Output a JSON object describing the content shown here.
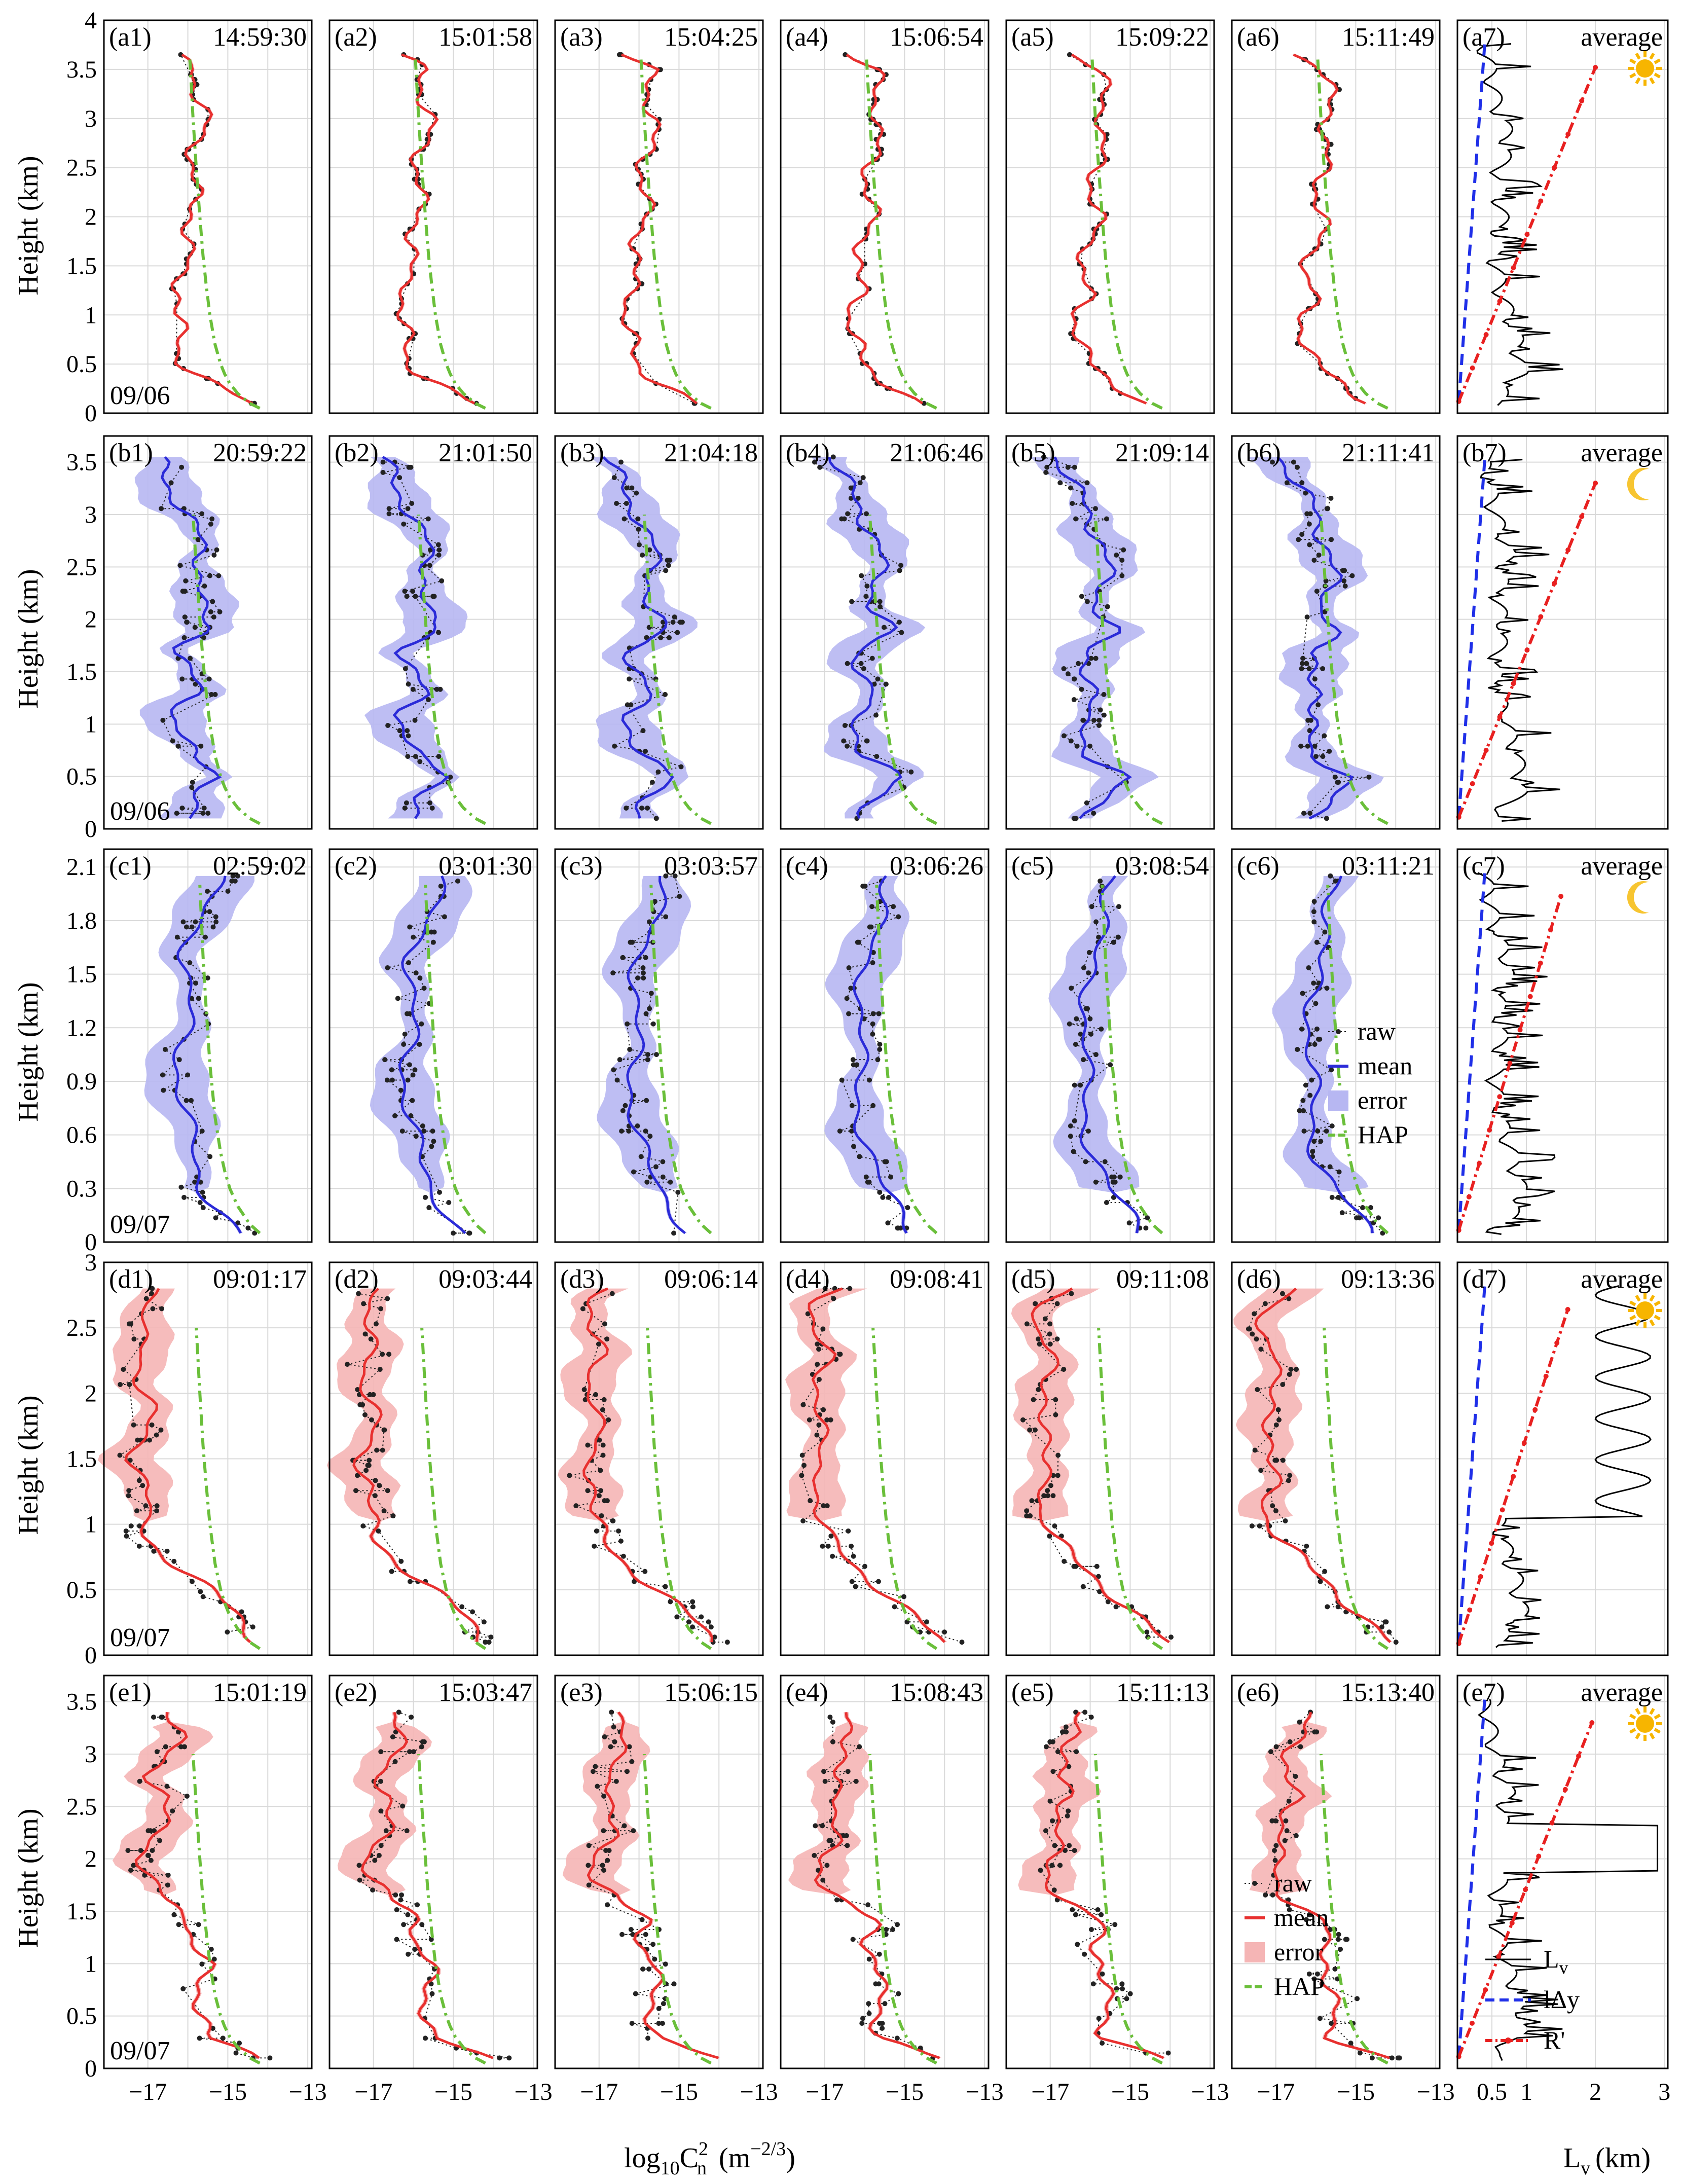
{
  "figure": {
    "y_axis_title": "Height (km)",
    "x_axis_title_profiles": "log₁₀Cₙ² (m⁻²ᐟ³)",
    "x_axis_title_profiles_parts": {
      "base": "log",
      "sub1": "10",
      "c": "C",
      "sub2": "n",
      "sup": "2",
      "unit": "(m",
      "unit_sup": "−2/3",
      "unit_close": ")"
    },
    "x_axis_title_lv": "L",
    "x_axis_title_lv_sub": "v",
    "x_axis_title_lv_unit": "(km)",
    "x_ticks_profiles": [
      -17,
      -15,
      -13
    ],
    "x_tick_labels_profiles": [
      "−17",
      "−15",
      "−13"
    ],
    "x_ticks_lv": [
      0.5,
      1,
      2,
      3
    ],
    "x_tick_labels_lv": [
      "0.5",
      "1",
      "2",
      "3"
    ],
    "colors": {
      "day": "#e8302f",
      "day_fill": "#f5b5b5",
      "night": "#2b2bd8",
      "night_fill": "#b7b7f2",
      "hap": "#6abf3a",
      "raw": "#222222",
      "lv": "#000000",
      "ldy": "#1f2fe8",
      "rprime": "#e82020",
      "grid": "#d9d9d9",
      "sun": "#f7b500",
      "moon": "#f7c531"
    }
  },
  "rows": [
    {
      "id": "a",
      "date": "09/06",
      "period": "day",
      "icon": "sun-icon",
      "ylim": [
        0,
        4
      ],
      "yticks": [
        0,
        0.5,
        1,
        1.5,
        2,
        2.5,
        3,
        3.5,
        4
      ],
      "ytick_labels": [
        "0",
        "0.5",
        "1",
        "1.5",
        "2",
        "2.5",
        "3",
        "3.5",
        "4"
      ],
      "panels": [
        {
          "tag": "(a1)",
          "time": "14:59:30"
        },
        {
          "tag": "(a2)",
          "time": "15:01:58"
        },
        {
          "tag": "(a3)",
          "time": "15:04:25"
        },
        {
          "tag": "(a4)",
          "time": "15:06:54"
        },
        {
          "tag": "(a5)",
          "time": "15:09:22"
        },
        {
          "tag": "(a6)",
          "time": "15:11:49"
        }
      ],
      "avg_tag": "(a7)",
      "avg_label": "average"
    },
    {
      "id": "b",
      "date": "09/06",
      "period": "night",
      "icon": "moon-icon",
      "ylim": [
        0,
        3.75
      ],
      "yticks": [
        0,
        0.5,
        1,
        1.5,
        2,
        2.5,
        3,
        3.5
      ],
      "ytick_labels": [
        "0",
        "0.5",
        "1",
        "1.5",
        "2",
        "2.5",
        "3",
        "3.5"
      ],
      "panels": [
        {
          "tag": "(b1)",
          "time": "20:59:22"
        },
        {
          "tag": "(b2)",
          "time": "21:01:50"
        },
        {
          "tag": "(b3)",
          "time": "21:04:18"
        },
        {
          "tag": "(b4)",
          "time": "21:06:46"
        },
        {
          "tag": "(b5)",
          "time": "21:09:14"
        },
        {
          "tag": "(b6)",
          "time": "21:11:41"
        }
      ],
      "avg_tag": "(b7)",
      "avg_label": "average"
    },
    {
      "id": "c",
      "date": "09/07",
      "period": "night",
      "icon": "moon-icon",
      "ylim": [
        0,
        2.2
      ],
      "yticks": [
        0,
        0.3,
        0.6,
        0.9,
        1.2,
        1.5,
        1.8,
        2.1
      ],
      "ytick_labels": [
        "0",
        "0.3",
        "0.6",
        "0.9",
        "1.2",
        "1.5",
        "1.8",
        "2.1"
      ],
      "panels": [
        {
          "tag": "(c1)",
          "time": "02:59:02"
        },
        {
          "tag": "(c2)",
          "time": "03:01:30"
        },
        {
          "tag": "(c3)",
          "time": "03:03:57"
        },
        {
          "tag": "(c4)",
          "time": "03:06:26"
        },
        {
          "tag": "(c5)",
          "time": "03:08:54"
        },
        {
          "tag": "(c6)",
          "time": "03:11:21"
        }
      ],
      "avg_tag": "(c7)",
      "avg_label": "average"
    },
    {
      "id": "d",
      "date": "09/07",
      "period": "day",
      "icon": "sun-icon",
      "ylim": [
        0,
        3
      ],
      "yticks": [
        0,
        0.5,
        1,
        1.5,
        2,
        2.5,
        3
      ],
      "ytick_labels": [
        "0",
        "0.5",
        "1",
        "1.5",
        "2",
        "2.5",
        "3"
      ],
      "panels": [
        {
          "tag": "(d1)",
          "time": "09:01:17"
        },
        {
          "tag": "(d2)",
          "time": "09:03:44"
        },
        {
          "tag": "(d3)",
          "time": "09:06:14"
        },
        {
          "tag": "(d4)",
          "time": "09:08:41"
        },
        {
          "tag": "(d5)",
          "time": "09:11:08"
        },
        {
          "tag": "(d6)",
          "time": "09:13:36"
        }
      ],
      "avg_tag": "(d7)",
      "avg_label": "average"
    },
    {
      "id": "e",
      "date": "09/07",
      "period": "day",
      "icon": "sun-icon",
      "ylim": [
        0,
        3.75
      ],
      "yticks": [
        0,
        0.5,
        1,
        1.5,
        2,
        2.5,
        3,
        3.5
      ],
      "ytick_labels": [
        "0",
        "0.5",
        "1",
        "1.5",
        "2",
        "2.5",
        "3",
        "3.5"
      ],
      "panels": [
        {
          "tag": "(e1)",
          "time": "15:01:19"
        },
        {
          "tag": "(e2)",
          "time": "15:03:47"
        },
        {
          "tag": "(e3)",
          "time": "15:06:15"
        },
        {
          "tag": "(e4)",
          "time": "15:08:43"
        },
        {
          "tag": "(e5)",
          "time": "15:11:13"
        },
        {
          "tag": "(e6)",
          "time": "15:13:40"
        }
      ],
      "avg_tag": "(e7)",
      "avg_label": "average"
    }
  ],
  "legends": {
    "night": {
      "items": [
        "raw",
        "mean",
        "error",
        "HAP"
      ]
    },
    "day": {
      "items": [
        "raw",
        "mean",
        "error",
        "HAP"
      ]
    },
    "lv": {
      "items": [
        {
          "label": "L",
          "sub": "v"
        },
        {
          "label": "lΔy",
          "sub": ""
        },
        {
          "label": "R'",
          "sub": ""
        }
      ]
    }
  },
  "chart_data": {
    "type": "line",
    "title": "",
    "xlabel_profiles": "log10 Cn2 (m^-2/3)",
    "xlim_profiles": [
      -18.1,
      -12.9
    ],
    "xlabel_average": "Lv (km)",
    "xlim_average": [
      0,
      3.05
    ],
    "ylabel": "Height (km)",
    "series_per_panel": [
      "raw",
      "mean",
      "error",
      "HAP"
    ],
    "series_average": [
      "Lv",
      "lΔy",
      "R'"
    ],
    "grid": true,
    "hap_profile": {
      "description": "HAP model profile, common to all panels",
      "h_km": [
        0.05,
        0.1,
        0.2,
        0.3,
        0.4,
        0.5,
        0.7,
        1.0,
        1.3,
        1.6,
        2.0,
        2.5,
        3.0,
        3.6
      ],
      "log10cn2": [
        -14.2,
        -14.45,
        -14.75,
        -14.95,
        -15.08,
        -15.18,
        -15.32,
        -15.45,
        -15.54,
        -15.62,
        -15.7,
        -15.79,
        -15.87,
        -15.95
      ]
    },
    "row_a_mean_profile": {
      "h_km": [
        0.1,
        0.2,
        0.3,
        0.4,
        0.5,
        0.6,
        0.8,
        1.0,
        1.2,
        1.4,
        1.6,
        1.8,
        2.0,
        2.2,
        2.5,
        2.8,
        3.0,
        3.2,
        3.5,
        3.65
      ],
      "log10cn2": [
        -14.6,
        -14.95,
        -15.35,
        -15.75,
        -16.05,
        -16.2,
        -16.25,
        -16.3,
        -16.1,
        -16.25,
        -16.05,
        -15.95,
        -15.85,
        -15.9,
        -15.85,
        -15.75,
        -15.6,
        -15.7,
        -15.8,
        -16.4
      ]
    },
    "row_b_mean_profile": {
      "h_km": [
        0.1,
        0.3,
        0.5,
        0.7,
        0.9,
        1.1,
        1.3,
        1.5,
        1.7,
        1.9,
        2.1,
        2.4,
        2.7,
        3.0,
        3.3,
        3.55
      ],
      "log10cn2": [
        -16.0,
        -15.7,
        -15.2,
        -16.0,
        -16.1,
        -16.3,
        -15.8,
        -16.0,
        -16.2,
        -15.4,
        -15.8,
        -15.6,
        -15.7,
        -16.0,
        -16.5,
        -16.8
      ]
    },
    "row_c_mean_profile": {
      "h_km": [
        0.05,
        0.15,
        0.3,
        0.45,
        0.6,
        0.8,
        1.0,
        1.2,
        1.4,
        1.6,
        1.8,
        1.95,
        2.05
      ],
      "log10cn2": [
        -14.7,
        -15.0,
        -15.6,
        -15.9,
        -16.0,
        -16.1,
        -16.2,
        -16.1,
        -16.0,
        -16.0,
        -15.7,
        -15.5,
        -15.3
      ]
    },
    "row_d_mean_profile": {
      "h_km": [
        0.1,
        0.3,
        0.5,
        0.7,
        0.9,
        1.1,
        1.3,
        1.5,
        1.7,
        1.9,
        2.1,
        2.3,
        2.5,
        2.7,
        2.8
      ],
      "log10cn2": [
        -14.2,
        -14.8,
        -15.5,
        -16.3,
        -17.0,
        -17.2,
        -17.0,
        -17.3,
        -17.1,
        -17.0,
        -17.2,
        -17.0,
        -17.3,
        -17.1,
        -16.6
      ]
    },
    "row_e_mean_profile": {
      "h_km": [
        0.1,
        0.3,
        0.5,
        0.8,
        1.0,
        1.2,
        1.4,
        1.6,
        1.8,
        2.0,
        2.2,
        2.4,
        2.6,
        2.8,
        3.0,
        3.2,
        3.4
      ],
      "log10cn2": [
        -14.2,
        -15.6,
        -15.6,
        -15.7,
        -15.6,
        -15.9,
        -15.8,
        -16.6,
        -17.0,
        -17.1,
        -16.8,
        -16.7,
        -16.5,
        -16.9,
        -16.6,
        -16.2,
        -16.4
      ]
    },
    "average_ldy_xmax_km": 0.4,
    "average_rprime_xmax_km": {
      "a": 2.0,
      "b": 2.0,
      "c": 1.5,
      "d": 1.6,
      "e": 1.95
    },
    "average_lv_profile_shape": {
      "h_frac": [
        0.03,
        0.1,
        0.2,
        0.3,
        0.4,
        0.5,
        0.6,
        0.7,
        0.8,
        0.9,
        0.95
      ],
      "lv_km": [
        0.4,
        0.8,
        0.7,
        0.5,
        0.4,
        0.5,
        0.45,
        0.6,
        0.4,
        0.3,
        0.2
      ]
    }
  }
}
